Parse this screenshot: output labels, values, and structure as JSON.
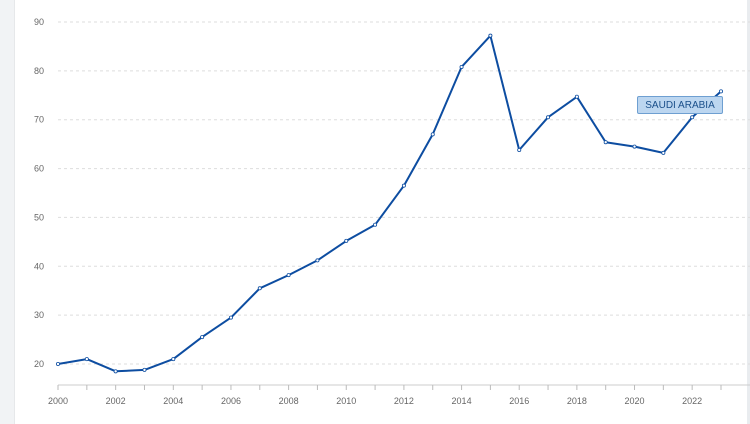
{
  "chart_data": {
    "type": "line",
    "title": "",
    "xlabel": "",
    "ylabel": "",
    "x": [
      2000,
      2001,
      2002,
      2003,
      2004,
      2005,
      2006,
      2007,
      2008,
      2009,
      2010,
      2011,
      2012,
      2013,
      2014,
      2015,
      2016,
      2017,
      2018,
      2019,
      2020,
      2021,
      2022,
      2023
    ],
    "series": [
      {
        "name": "SAUDI ARABIA",
        "values": [
          20.0,
          21.0,
          18.5,
          18.8,
          21.0,
          25.5,
          29.5,
          35.5,
          38.2,
          41.2,
          45.2,
          48.5,
          56.5,
          67.0,
          80.8,
          87.2,
          63.8,
          70.5,
          74.7,
          65.4,
          64.5,
          63.2,
          70.5,
          75.8
        ]
      }
    ],
    "xlim": [
      2000,
      2023
    ],
    "ylim": [
      15,
      90
    ],
    "xticks": [
      "2000",
      "2002",
      "2004",
      "2006",
      "2008",
      "2010",
      "2012",
      "2014",
      "2016",
      "2018",
      "2020",
      "2022"
    ],
    "yticks": [
      "20",
      "30",
      "40",
      "50",
      "60",
      "70",
      "80",
      "90"
    ],
    "grid": "horizontal dashed",
    "legend": "inline label near line end",
    "colors": {
      "line": "#0d4da1",
      "label_bg": "#bcd6f0",
      "label_border": "#6e9fd1",
      "grid": "#dddddd",
      "tick_text": "#666666"
    }
  }
}
